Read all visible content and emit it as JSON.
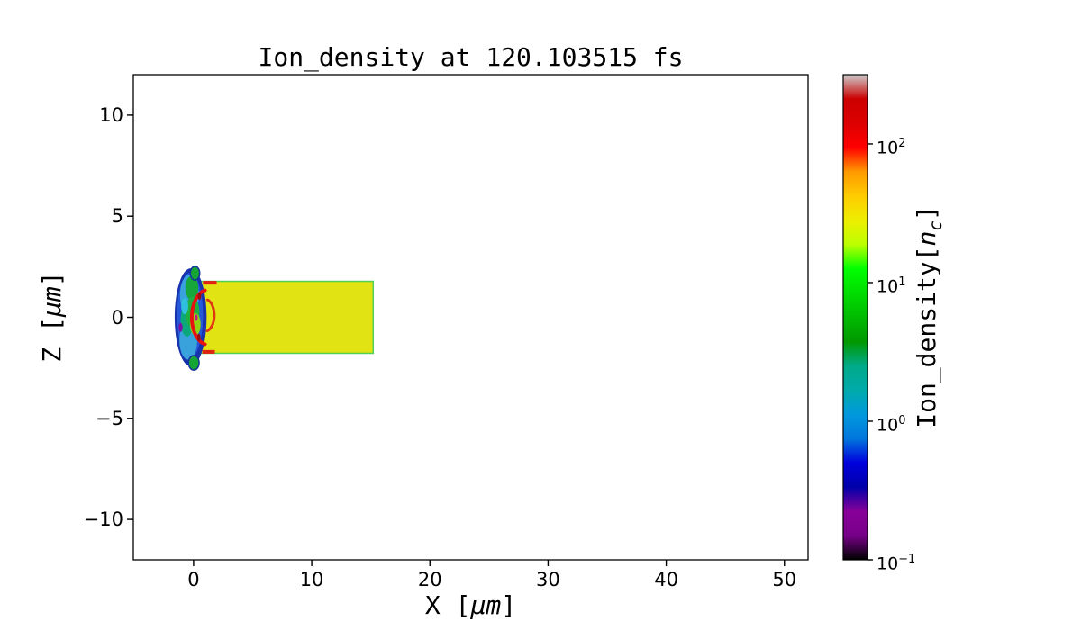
{
  "page": {
    "background": "#ffffff"
  },
  "chart_data": {
    "type": "heatmap",
    "title": "Ion_density at 120.103515 fs",
    "time_fs": 120.103515,
    "xlabel": {
      "pre": "X [",
      "unit": "μm",
      "post": "]"
    },
    "ylabel": {
      "pre": "Z [",
      "unit": "μm",
      "post": "]"
    },
    "xlim": [
      -5.1,
      52.0
    ],
    "ylim": [
      -12.0,
      12.0
    ],
    "x_ticks": [
      {
        "v": 0,
        "label": "0"
      },
      {
        "v": 10,
        "label": "10"
      },
      {
        "v": 20,
        "label": "20"
      },
      {
        "v": 30,
        "label": "30"
      },
      {
        "v": 40,
        "label": "40"
      },
      {
        "v": 50,
        "label": "50"
      }
    ],
    "y_ticks": [
      {
        "v": 10,
        "label": "10"
      },
      {
        "v": 5,
        "label": "5"
      },
      {
        "v": 0,
        "label": "0"
      },
      {
        "v": -5,
        "label": "−5"
      },
      {
        "v": -10,
        "label": "−10"
      }
    ],
    "grid": false,
    "axes_color": "#000000",
    "plot_background": "#ffffff",
    "colorbar": {
      "label": {
        "pre": "Ion_density[",
        "var": "n",
        "sub": "c",
        "post": "]"
      },
      "scale": "log",
      "vmin": 0.1,
      "vmax": 316,
      "colormap": "nipy_spectral",
      "ticks": [
        {
          "value": 100,
          "base": "10",
          "exp": "2"
        },
        {
          "value": 10,
          "base": "10",
          "exp": "1"
        },
        {
          "value": 1,
          "base": "10",
          "exp": "0"
        },
        {
          "value": 0.1,
          "base": "10",
          "exp": "−1"
        }
      ],
      "stops": [
        [
          0.0,
          "#000000"
        ],
        [
          0.05,
          "#770088"
        ],
        [
          0.1,
          "#880099"
        ],
        [
          0.15,
          "#0000aa"
        ],
        [
          0.2,
          "#0000dd"
        ],
        [
          0.25,
          "#0077dd"
        ],
        [
          0.3,
          "#0099dd"
        ],
        [
          0.35,
          "#00aaaa"
        ],
        [
          0.4,
          "#00aa88"
        ],
        [
          0.45,
          "#009900"
        ],
        [
          0.5,
          "#00bb00"
        ],
        [
          0.55,
          "#00dd00"
        ],
        [
          0.6,
          "#00ff00"
        ],
        [
          0.65,
          "#bbff00"
        ],
        [
          0.7,
          "#eeee00"
        ],
        [
          0.75,
          "#ffcc00"
        ],
        [
          0.8,
          "#ff9900"
        ],
        [
          0.85,
          "#ff0000"
        ],
        [
          0.9,
          "#dd0000"
        ],
        [
          0.95,
          "#cc0000"
        ],
        [
          1.0,
          "#cccccc"
        ]
      ]
    },
    "features": [
      {
        "type": "rect",
        "name": "target-slab",
        "x0": 0.55,
        "x1": 15.2,
        "z0": -1.78,
        "z1": 1.78,
        "density_nc": 30,
        "fill": "#e2e313",
        "stroke": "#52d052",
        "strokeWidth": 1.5
      },
      {
        "type": "ellipse",
        "name": "blob-outer-navy",
        "cx": -0.25,
        "cz": 0.0,
        "rx": 1.35,
        "rz": 2.42,
        "density_nc": 0.5,
        "fill": "#1733ae"
      },
      {
        "type": "ellipse",
        "name": "blob-blue",
        "cx": -0.3,
        "cz": 0.1,
        "rx": 1.1,
        "rz": 2.1,
        "density_nc": 0.9,
        "fill": "#2458d8"
      },
      {
        "type": "ellipse",
        "name": "blob-lightblue-top",
        "cx": -0.35,
        "cz": 1.1,
        "rx": 0.8,
        "rz": 1.0,
        "density_nc": 1.5,
        "fill": "#39a1dc"
      },
      {
        "type": "ellipse",
        "name": "blob-lightblue-bot",
        "cx": -0.45,
        "cz": -1.15,
        "rx": 0.75,
        "rz": 0.95,
        "density_nc": 1.5,
        "fill": "#39a1dc"
      },
      {
        "type": "ellipse",
        "name": "blob-teal",
        "cx": -0.55,
        "cz": -0.15,
        "rx": 0.55,
        "rz": 0.8,
        "density_nc": 5,
        "fill": "#0ca87c"
      },
      {
        "type": "ellipse",
        "name": "blob-green-top",
        "cx": -0.15,
        "cz": 1.45,
        "rx": 0.55,
        "rz": 0.6,
        "density_nc": 8,
        "fill": "#16a63c"
      },
      {
        "type": "ellipse",
        "name": "blob-green-mid",
        "cx": -0.1,
        "cz": 0.25,
        "rx": 0.6,
        "rz": 0.75,
        "density_nc": 8,
        "fill": "#1db141"
      },
      {
        "type": "ellipse",
        "name": "blob-yellowgreen",
        "cx": 0.15,
        "cz": -0.35,
        "rx": 0.45,
        "rz": 0.55,
        "density_nc": 20,
        "fill": "#8fd414"
      },
      {
        "type": "ellipse",
        "name": "blob-cyan-speck",
        "cx": -0.75,
        "cz": 0.55,
        "rx": 0.3,
        "rz": 0.4,
        "density_nc": 2,
        "fill": "#2fc0e0"
      },
      {
        "type": "ellipse",
        "name": "green-cap-top",
        "cx": 0.12,
        "cz": 2.18,
        "rx": 0.4,
        "rz": 0.34,
        "density_nc": 8,
        "fill": "#14a534",
        "stroke": "#16309c",
        "strokeWidth": 1.5
      },
      {
        "type": "ellipse",
        "name": "green-cap-bottom",
        "cx": 0.02,
        "cz": -2.25,
        "rx": 0.45,
        "rz": 0.36,
        "density_nc": 8,
        "fill": "#14a534",
        "stroke": "#16309c",
        "strokeWidth": 1.5
      },
      {
        "type": "ellipse",
        "name": "purple-speck",
        "cx": -1.1,
        "cz": -0.5,
        "rx": 0.17,
        "rz": 0.22,
        "density_nc": 0.3,
        "fill": "#7a12a6"
      },
      {
        "type": "arc",
        "name": "red-crescent-front",
        "cx": 1.2,
        "cz": 0.0,
        "r": 1.35,
        "a0": 100,
        "a1": 260,
        "w": 0.3,
        "density_nc": 150,
        "color": "#e81310"
      },
      {
        "type": "arc",
        "name": "red-arc-inner",
        "cx": 0.95,
        "cz": 0.1,
        "r": 0.8,
        "a0": -75,
        "a1": 75,
        "w": 0.22,
        "density_nc": 120,
        "color": "#e03614"
      },
      {
        "type": "rect",
        "name": "red-edge-top",
        "x0": 0.8,
        "x1": 1.95,
        "z0": 1.62,
        "z1": 1.8,
        "density_nc": 120,
        "fill": "#e02010"
      },
      {
        "type": "rect",
        "name": "red-edge-bottom",
        "x0": 0.75,
        "x1": 1.8,
        "z0": -1.8,
        "z1": -1.62,
        "density_nc": 120,
        "fill": "#e02010"
      },
      {
        "type": "ellipse",
        "name": "darkred-spot-top",
        "cx": 0.5,
        "cz": 1.05,
        "rx": 0.15,
        "rz": 0.18,
        "density_nc": 250,
        "fill": "#9e0b0b"
      },
      {
        "type": "ellipse",
        "name": "darkred-spot-bottom",
        "cx": 0.45,
        "cz": -1.0,
        "rx": 0.14,
        "rz": 0.18,
        "density_nc": 250,
        "fill": "#9e0b0b"
      },
      {
        "type": "ellipse",
        "name": "magenta-speck",
        "cx": 0.22,
        "cz": -0.02,
        "rx": 0.13,
        "rz": 0.16,
        "density_nc": 0.25,
        "fill": "#c0148c"
      }
    ]
  }
}
